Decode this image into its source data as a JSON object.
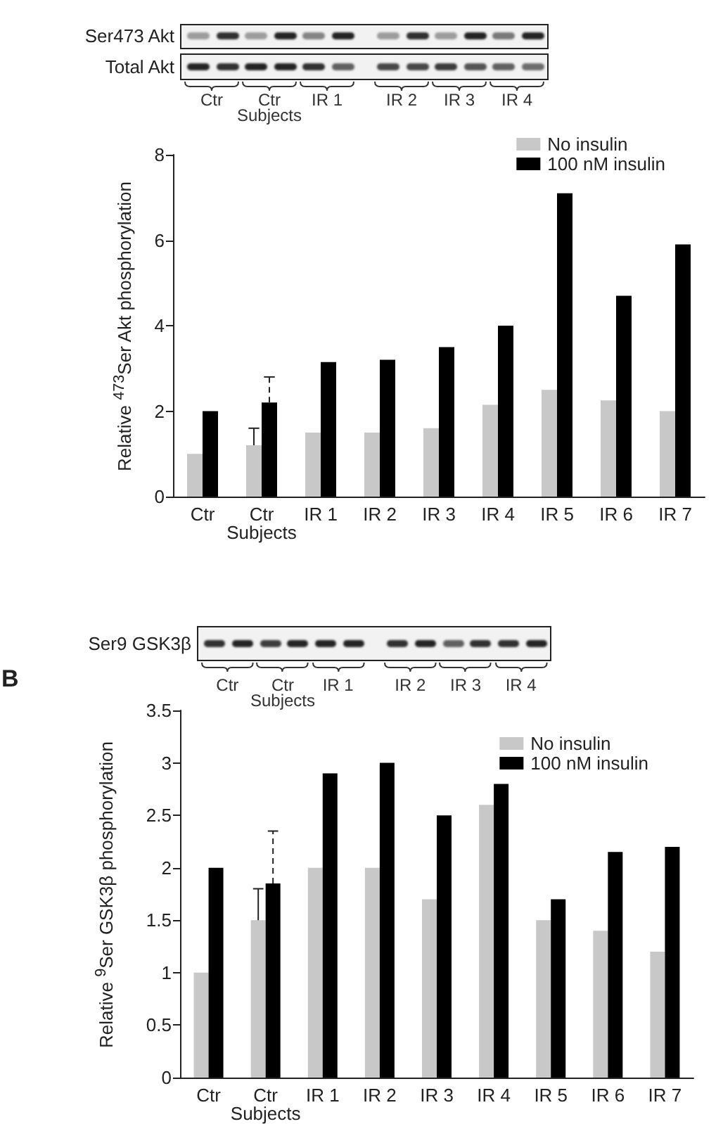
{
  "chart_data": [
    {
      "type": "bar",
      "ylabel": "Relative $^{473}$Ser Akt phosphorylation",
      "categories": [
        "Ctr",
        "Ctr\nSubjects",
        "IR 1",
        "IR 2",
        "IR 3",
        "IR 4",
        "IR 5",
        "IR 6",
        "IR 7"
      ],
      "series": [
        {
          "name": "No insulin",
          "color": "#c8c8c8",
          "values": [
            1,
            1.2,
            1.5,
            1.5,
            1.6,
            2.15,
            2.5,
            2.25,
            2
          ],
          "errors": [
            null,
            [
              1.2,
              1.6
            ],
            null,
            null,
            null,
            null,
            null,
            null,
            null
          ]
        },
        {
          "name": "100 nM insulin",
          "color": "#000000",
          "values": [
            2,
            2.2,
            3.15,
            3.2,
            3.5,
            4,
            7.1,
            4.7,
            5.9
          ],
          "errors": [
            null,
            [
              2.2,
              2.8
            ],
            null,
            null,
            null,
            null,
            null,
            null,
            null
          ],
          "line_style": "dashed"
        }
      ],
      "ylim": [
        0,
        8
      ],
      "yticks": [
        0,
        2,
        4,
        6,
        8
      ],
      "legend": "top right",
      "annotations": [
        "Ser473 Akt",
        "Total Akt",
        "Ctr",
        "Ctr\nSubjects",
        "IR 1",
        "IR 2",
        "IR 3",
        "IR 4"
      ]
    },
    {
      "type": "bar",
      "ylabel": "Relative $^{9}$Ser GSK3β phosphorylation",
      "categories": [
        "Ctr",
        "Ctr\nSubjects",
        "IR 1",
        "IR 2",
        "IR 3",
        "IR 4",
        "IR 5",
        "IR 6",
        "IR 7"
      ],
      "series": [
        {
          "name": "No insulin",
          "color": "#c8c8c8",
          "values": [
            1,
            1.5,
            2,
            2,
            1.7,
            2.6,
            1.5,
            1.4,
            1.2
          ],
          "errors": [
            null,
            [
              1.5,
              1.8
            ],
            null,
            null,
            null,
            null,
            null,
            null,
            null
          ]
        },
        {
          "name": "100 nM insulin",
          "color": "#000000",
          "values": [
            2,
            1.85,
            2.9,
            3,
            2.5,
            2.8,
            1.7,
            2.15,
            2.2
          ],
          "errors": [
            null,
            [
              1.85,
              2.35
            ],
            null,
            null,
            null,
            null,
            null,
            null,
            null
          ],
          "line_style": "dashed"
        }
      ],
      "ylim": [
        0,
        3.5
      ],
      "yticks": [
        0,
        0.5,
        1,
        1.5,
        2,
        2.5,
        3,
        3.5
      ],
      "legend": "top right",
      "annotations": [
        "B",
        "Ser9 GSK3β",
        "Ctr",
        "Ctr\nSubjects",
        "IR 1",
        "IR 2",
        "IR 3",
        "IR 4"
      ]
    }
  ]
}
